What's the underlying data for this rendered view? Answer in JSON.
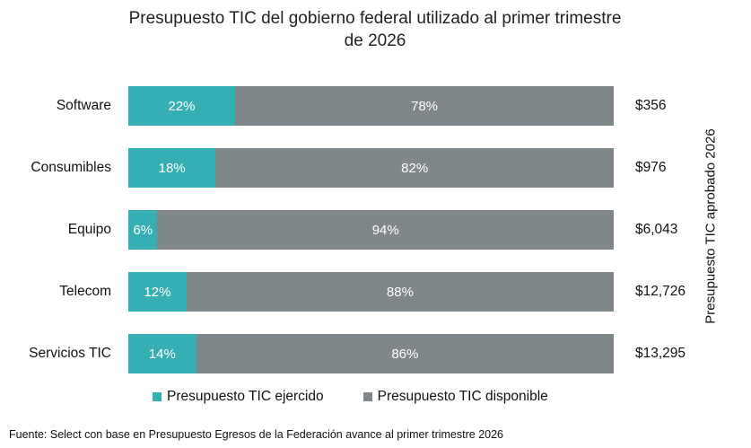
{
  "chart_data": {
    "type": "bar",
    "orientation": "horizontal",
    "stacked": "percent",
    "title": "Presupuesto TIC del gobierno federal utilizado al primer trimestre de 2026",
    "title_lines": [
      "Presupuesto TIC del gobierno federal utilizado al primer trimestre",
      "de 2026"
    ],
    "categories": [
      "Software",
      "Consumibles",
      "Equipo",
      "Telecom",
      "Servicios TIC"
    ],
    "series": [
      {
        "name": "Presupuesto TIC ejercido",
        "color": "#35afb4",
        "values": [
          22,
          18,
          6,
          12,
          14
        ],
        "labels": [
          "22%",
          "18%",
          "6%",
          "12%",
          "14%"
        ]
      },
      {
        "name": "Presupuesto TIC disponible",
        "color": "#80878a",
        "values": [
          78,
          82,
          94,
          88,
          86
        ],
        "labels": [
          "78%",
          "82%",
          "94%",
          "88%",
          "86%"
        ]
      }
    ],
    "totals_label": "Presupuesto TIC aprobado 2026",
    "totals": [
      "$356",
      "$976",
      "$6,043",
      "$12,726",
      "$13,295"
    ],
    "xlim": [
      0,
      100
    ],
    "grid": false,
    "legend_position": "bottom"
  },
  "source": "Fuente: Select con base en Presupuesto Egresos de la Federación avance al primer trimestre 2026"
}
